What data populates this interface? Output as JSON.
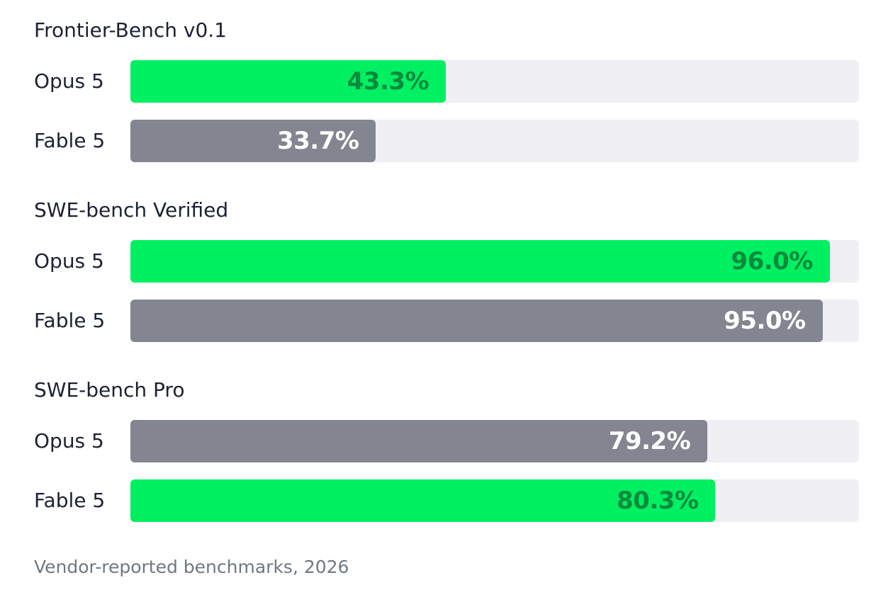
{
  "colors": {
    "highlight": "#00f062",
    "highlight_text": "#0a8a3c",
    "muted": "#838591",
    "muted_text": "#ffffff",
    "track": "#efeff4"
  },
  "footnote": "Vendor-reported benchmarks, 2026",
  "chart_data": {
    "type": "bar",
    "orientation": "horizontal",
    "xlim": [
      0,
      100
    ],
    "unit": "%",
    "grid": false,
    "groups": [
      {
        "title": "Frontier-Bench v0.1",
        "rows": [
          {
            "label": "Opus 5",
            "value": 43.3,
            "display": "43.3%",
            "style": "highlight"
          },
          {
            "label": "Fable 5",
            "value": 33.7,
            "display": "33.7%",
            "style": "muted"
          }
        ]
      },
      {
        "title": "SWE-bench Verified",
        "rows": [
          {
            "label": "Opus 5",
            "value": 96.0,
            "display": "96.0%",
            "style": "highlight"
          },
          {
            "label": "Fable 5",
            "value": 95.0,
            "display": "95.0%",
            "style": "muted"
          }
        ]
      },
      {
        "title": "SWE-bench Pro",
        "rows": [
          {
            "label": "Opus 5",
            "value": 79.2,
            "display": "79.2%",
            "style": "muted"
          },
          {
            "label": "Fable 5",
            "value": 80.3,
            "display": "80.3%",
            "style": "highlight"
          }
        ]
      }
    ]
  }
}
